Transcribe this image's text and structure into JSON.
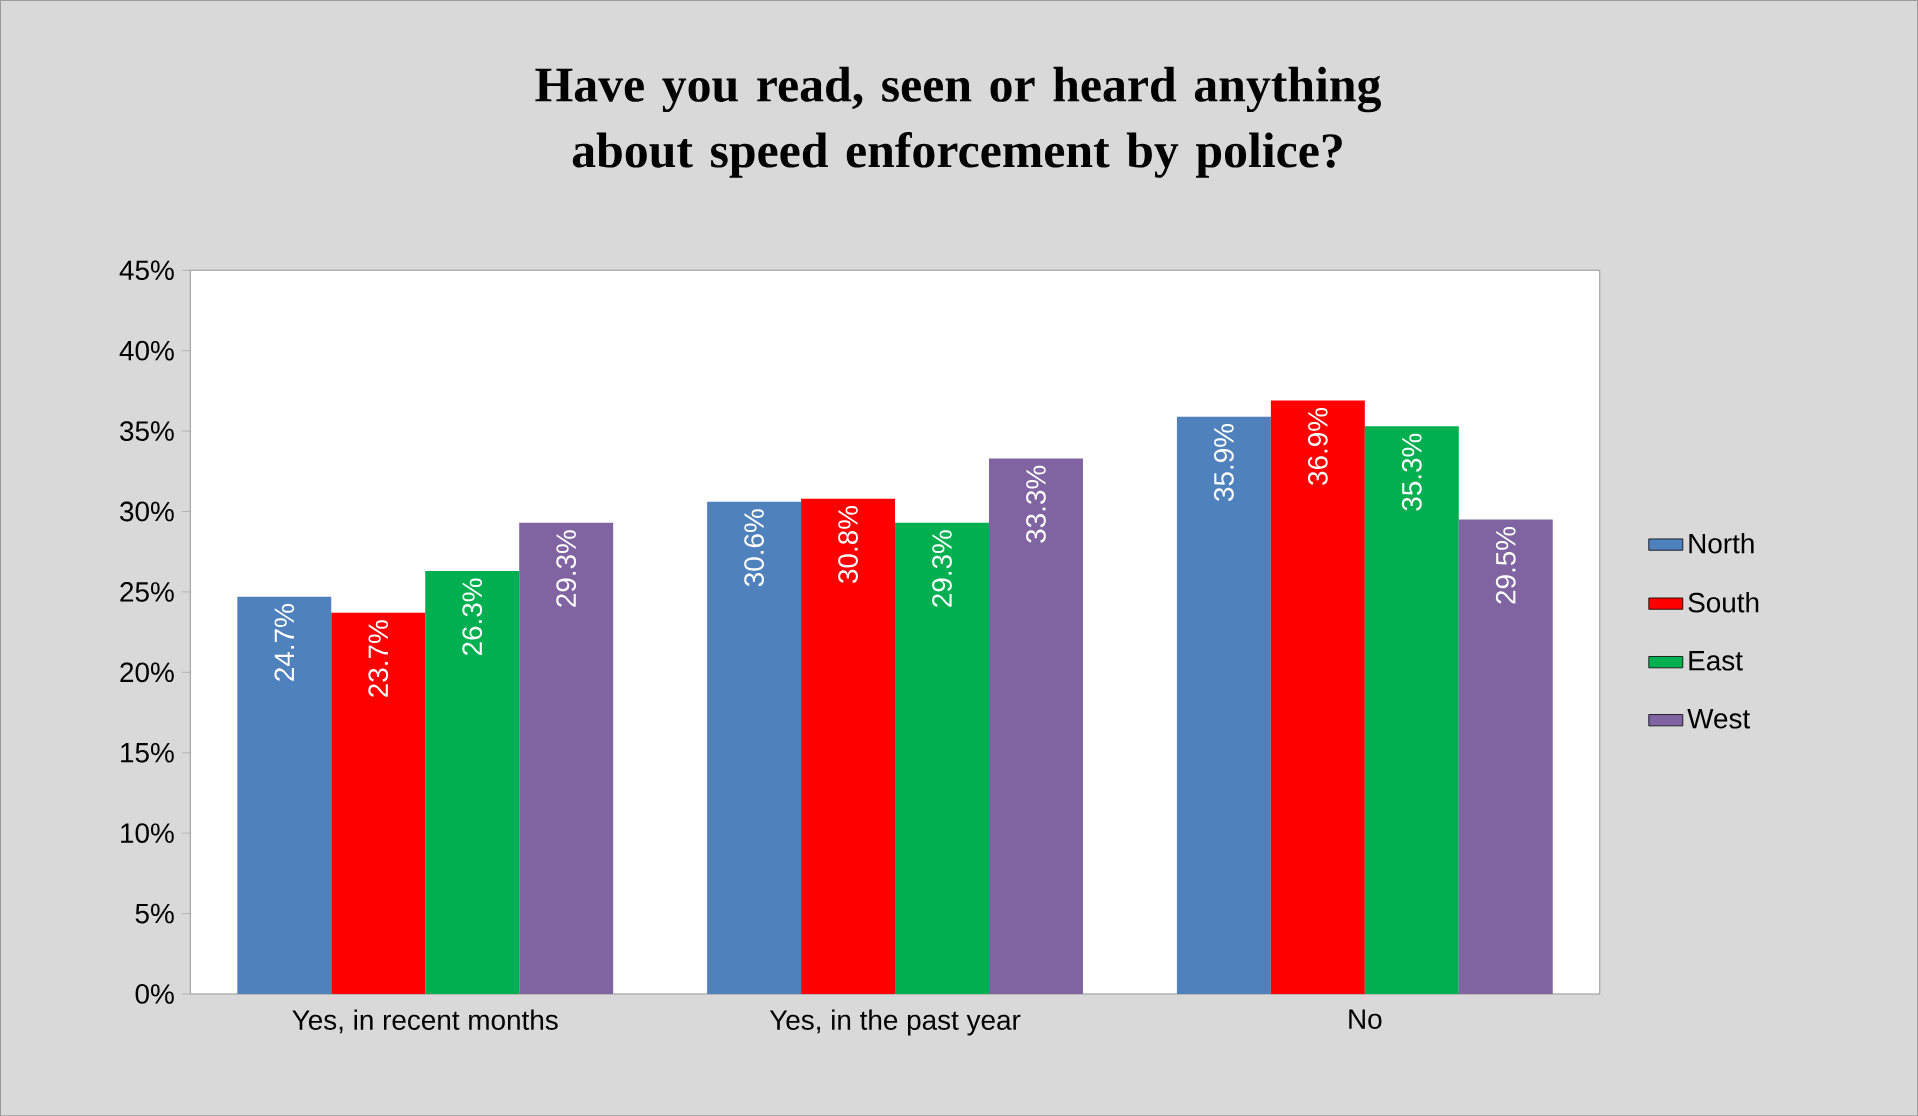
{
  "chart_data": {
    "type": "bar",
    "title": "Have you read, seen or heard anything about speed enforcement by police?",
    "categories": [
      "Yes, in recent months",
      "Yes, in the past year",
      "No"
    ],
    "series": [
      {
        "name": "North",
        "color": "#4f81bd",
        "values": [
          24.7,
          30.6,
          35.9
        ],
        "value_labels": [
          "24.7%",
          "30.6%",
          "35.9%"
        ]
      },
      {
        "name": "South",
        "color": "#ff0000",
        "values": [
          23.7,
          30.8,
          36.9
        ],
        "value_labels": [
          "23.7%",
          "30.8%",
          "36.9%"
        ]
      },
      {
        "name": "East",
        "color": "#00b050",
        "values": [
          26.3,
          29.3,
          35.3
        ],
        "value_labels": [
          "26.3%",
          "29.3%",
          "35.3%"
        ]
      },
      {
        "name": "West",
        "color": "#8064a2",
        "values": [
          29.3,
          33.3,
          29.5
        ],
        "value_labels": [
          "29.3%",
          "33.3%",
          "29.5%"
        ]
      }
    ],
    "ylim": [
      0,
      45
    ],
    "yticks": [
      {
        "value": 0,
        "label": "0%"
      },
      {
        "value": 5,
        "label": "5%"
      },
      {
        "value": 10,
        "label": "10%"
      },
      {
        "value": 15,
        "label": "15%"
      },
      {
        "value": 20,
        "label": "20%"
      },
      {
        "value": 25,
        "label": "25%"
      },
      {
        "value": 30,
        "label": "30%"
      },
      {
        "value": 35,
        "label": "35%"
      },
      {
        "value": 40,
        "label": "40%"
      },
      {
        "value": 45,
        "label": "45%"
      }
    ],
    "grid": false,
    "legend": "right"
  }
}
